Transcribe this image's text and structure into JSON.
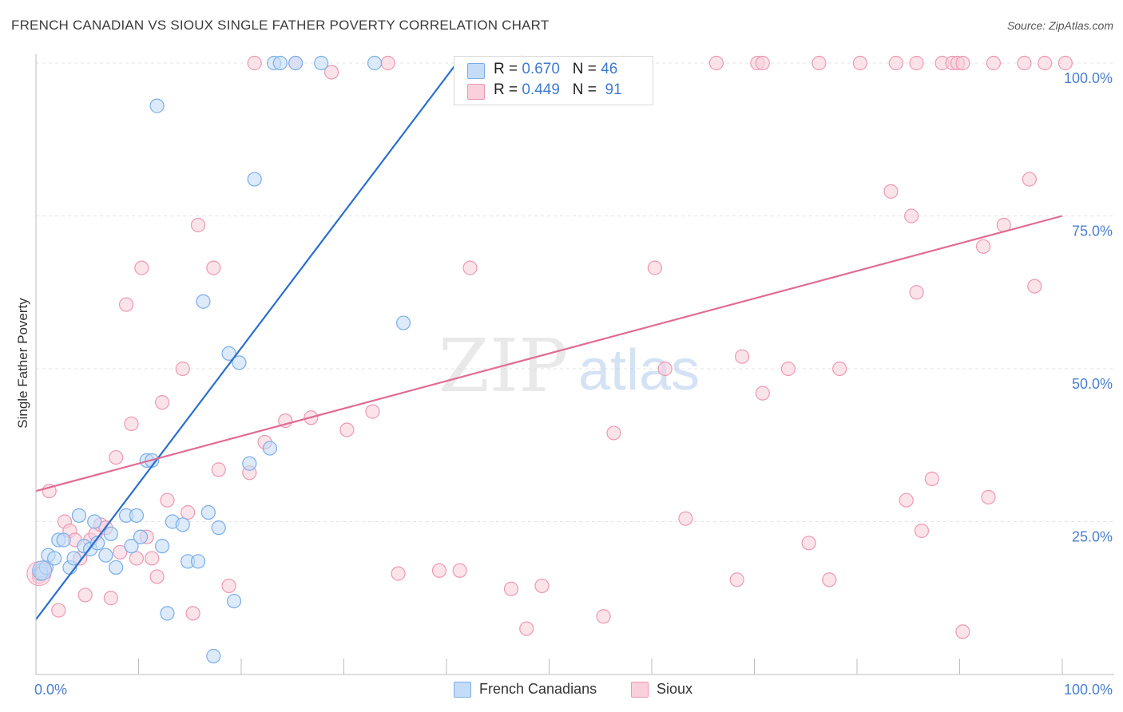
{
  "header": {
    "title": "FRENCH CANADIAN VS SIOUX SINGLE FATHER POVERTY CORRELATION CHART",
    "source": "Source: ZipAtlas.com"
  },
  "watermark": {
    "zip": "ZIP",
    "atlas": "atlas"
  },
  "legend": {
    "r_label": "R =",
    "n_label": "N =",
    "rows": [
      {
        "r": "0.670",
        "n": "46"
      },
      {
        "r": "0.449",
        "n": "91"
      }
    ]
  },
  "colors": {
    "french": "#7aaee8",
    "french_fill": "#c5dcf7",
    "french_line": "#2a6fcf",
    "sioux": "#ee98b2",
    "sioux_fill": "#f9d0dc",
    "sioux_line": "#e26b94",
    "tick_text": "#4a7fcf",
    "grid": "#e4e4e4"
  },
  "chart_data": {
    "type": "scatter",
    "title": "FRENCH CANADIAN VS SIOUX SINGLE FATHER POVERTY CORRELATION CHART",
    "xlabel": "",
    "ylabel": "Single Father Poverty",
    "xlim": [
      0,
      100
    ],
    "ylim": [
      0,
      100
    ],
    "x_tick_labels": [
      "0.0%",
      "100.0%"
    ],
    "y_tick_labels": [
      "25.0%",
      "50.0%",
      "75.0%",
      "100.0%"
    ],
    "y_ticks": [
      25,
      50,
      75,
      100
    ],
    "grid": true,
    "legend_position": "bottom",
    "series": [
      {
        "name": "French Canadians",
        "r": 0.67,
        "n": 46,
        "trend": {
          "x0": 0,
          "y0": 9,
          "x1": 41,
          "y1": 100
        },
        "points": [
          [
            0.5,
            17
          ],
          [
            0.5,
            16.5
          ],
          [
            1,
            17.5
          ],
          [
            1.2,
            19.5
          ],
          [
            1.8,
            19
          ],
          [
            2.2,
            22
          ],
          [
            2.7,
            22
          ],
          [
            3.3,
            17.5
          ],
          [
            3.7,
            19
          ],
          [
            4.2,
            26
          ],
          [
            4.7,
            21
          ],
          [
            5.3,
            20.5
          ],
          [
            5.7,
            25
          ],
          [
            6,
            21.5
          ],
          [
            6.8,
            19.5
          ],
          [
            7.3,
            23
          ],
          [
            7.8,
            17.5
          ],
          [
            8.8,
            26
          ],
          [
            9.3,
            21
          ],
          [
            9.8,
            26
          ],
          [
            10.2,
            22.5
          ],
          [
            10.8,
            35
          ],
          [
            11.3,
            35
          ],
          [
            11.8,
            93
          ],
          [
            12.3,
            21
          ],
          [
            12.8,
            10
          ],
          [
            13.3,
            25
          ],
          [
            14.3,
            24.5
          ],
          [
            14.8,
            18.5
          ],
          [
            15.8,
            18.5
          ],
          [
            16.3,
            61
          ],
          [
            16.8,
            26.5
          ],
          [
            17.3,
            3
          ],
          [
            17.8,
            24
          ],
          [
            18.8,
            52.5
          ],
          [
            19.3,
            12
          ],
          [
            19.8,
            51
          ],
          [
            20.8,
            34.5
          ],
          [
            21.3,
            81
          ],
          [
            22.8,
            37
          ],
          [
            23.2,
            100
          ],
          [
            23.8,
            100
          ],
          [
            25.3,
            100
          ],
          [
            27.8,
            100
          ],
          [
            33,
            100
          ],
          [
            35.8,
            57.5
          ]
        ]
      },
      {
        "name": "Sioux",
        "r": 0.449,
        "n": 91,
        "trend": {
          "x0": 0,
          "y0": 30,
          "x1": 100,
          "y1": 75
        },
        "points": [
          [
            0.3,
            16
          ],
          [
            0.8,
            17
          ],
          [
            1.3,
            30
          ],
          [
            2.2,
            10.5
          ],
          [
            2.8,
            25
          ],
          [
            3.3,
            23.5
          ],
          [
            3.8,
            22
          ],
          [
            4.3,
            19
          ],
          [
            4.8,
            13
          ],
          [
            5.3,
            22
          ],
          [
            5.8,
            23
          ],
          [
            6.3,
            24.5
          ],
          [
            6.8,
            24
          ],
          [
            7.3,
            12.5
          ],
          [
            7.8,
            35.5
          ],
          [
            8.2,
            20
          ],
          [
            8.8,
            60.5
          ],
          [
            9.3,
            41
          ],
          [
            9.8,
            19
          ],
          [
            10.3,
            66.5
          ],
          [
            10.8,
            22.5
          ],
          [
            11.3,
            19
          ],
          [
            11.8,
            16
          ],
          [
            12.3,
            44.5
          ],
          [
            12.8,
            28.5
          ],
          [
            14.3,
            50
          ],
          [
            14.8,
            26.5
          ],
          [
            15.3,
            10
          ],
          [
            15.8,
            73.5
          ],
          [
            17.3,
            66.5
          ],
          [
            17.8,
            33.5
          ],
          [
            18.8,
            14.5
          ],
          [
            20.8,
            33
          ],
          [
            21.3,
            100
          ],
          [
            22.3,
            38
          ],
          [
            24.3,
            41.5
          ],
          [
            25.3,
            100
          ],
          [
            26.8,
            42
          ],
          [
            28.8,
            98.5
          ],
          [
            30.3,
            40
          ],
          [
            32.8,
            43
          ],
          [
            34.3,
            100
          ],
          [
            35.3,
            16.5
          ],
          [
            39.3,
            17
          ],
          [
            41.3,
            17
          ],
          [
            42.3,
            66.5
          ],
          [
            46.3,
            14
          ],
          [
            47.3,
            100
          ],
          [
            47.8,
            7.5
          ],
          [
            49.3,
            14.5
          ],
          [
            55.3,
            9.5
          ],
          [
            56.3,
            39.5
          ],
          [
            57.3,
            100
          ],
          [
            60.3,
            66.5
          ],
          [
            61.3,
            50
          ],
          [
            63.3,
            25.5
          ],
          [
            66.3,
            100
          ],
          [
            68.3,
            15.5
          ],
          [
            68.8,
            52
          ],
          [
            70.3,
            100
          ],
          [
            70.8,
            100
          ],
          [
            70.8,
            46
          ],
          [
            73.3,
            50
          ],
          [
            75.3,
            21.5
          ],
          [
            76.3,
            100
          ],
          [
            77.3,
            15.5
          ],
          [
            78.3,
            50
          ],
          [
            80.3,
            100
          ],
          [
            83.3,
            79
          ],
          [
            83.8,
            100
          ],
          [
            84.8,
            28.5
          ],
          [
            85.3,
            75
          ],
          [
            85.8,
            100
          ],
          [
            85.8,
            62.5
          ],
          [
            86.3,
            23.5
          ],
          [
            87.3,
            32
          ],
          [
            88.3,
            100
          ],
          [
            89.3,
            100
          ],
          [
            89.8,
            100
          ],
          [
            90.3,
            100
          ],
          [
            90.3,
            7
          ],
          [
            92.3,
            70
          ],
          [
            92.8,
            29
          ],
          [
            93.3,
            100
          ],
          [
            94.3,
            73.5
          ],
          [
            96.3,
            100
          ],
          [
            96.8,
            81
          ],
          [
            97.3,
            63.5
          ],
          [
            98.3,
            100
          ],
          [
            100.3,
            100
          ],
          [
            0.3,
            16.5
          ]
        ]
      }
    ]
  }
}
